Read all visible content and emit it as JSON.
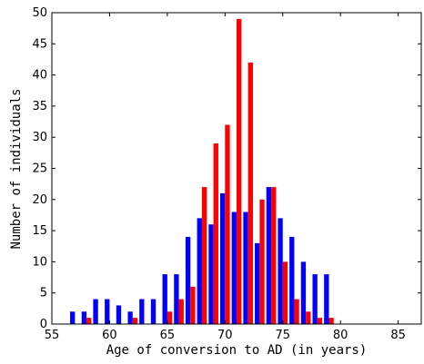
{
  "chart_data": {
    "type": "bar",
    "title": "",
    "xlabel": "Age of conversion to AD (in years)",
    "ylabel": "Number of individuals",
    "xlim": [
      55,
      87
    ],
    "ylim": [
      0,
      50
    ],
    "xticks": [
      55,
      60,
      65,
      70,
      75,
      80,
      85
    ],
    "yticks": [
      0,
      5,
      10,
      15,
      20,
      25,
      30,
      35,
      40,
      45,
      50
    ],
    "grid": false,
    "legend": "none",
    "x": [
      57,
      58,
      59,
      60,
      61,
      62,
      63,
      64,
      65,
      66,
      67,
      68,
      69,
      70,
      71,
      72,
      73,
      74,
      75,
      76,
      77,
      78,
      79,
      80,
      81,
      82,
      83,
      84,
      85,
      86,
      87
    ],
    "series": [
      {
        "color": "#0000ff",
        "values": [
          2,
          2,
          4,
          4,
          3,
          2,
          4,
          4,
          8,
          8,
          14,
          17,
          16,
          21,
          18,
          18,
          13,
          22,
          17,
          14,
          10,
          8,
          8,
          0,
          0,
          0,
          0,
          0,
          0,
          0,
          0
        ]
      },
      {
        "color": "#ff0000",
        "values": [
          0,
          1,
          0,
          0,
          0,
          1,
          0,
          0,
          2,
          4,
          6,
          22,
          29,
          32,
          49,
          42,
          20,
          22,
          10,
          4,
          2,
          1,
          1,
          0,
          0,
          0,
          0,
          0,
          0,
          0,
          0
        ]
      }
    ]
  }
}
